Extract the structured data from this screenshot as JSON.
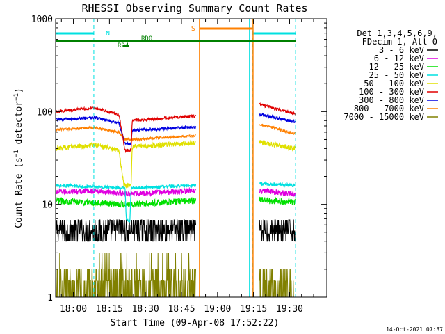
{
  "chart_data": {
    "type": "line",
    "title": "RHESSI Observing Summary Count Rates",
    "xlabel": "Start Time (09-Apr-08 17:52:22)",
    "ylabel": "Count Rate (s⁻¹ detector⁻¹)",
    "ylabel_main": "Count Rate (s",
    "ylabel_sup1": "−1",
    "ylabel_mid": " detector",
    "ylabel_sup2": "−1",
    "ylabel_end": ")",
    "y_scale": "log",
    "ylim": [
      1,
      1000
    ],
    "xlim_minutes": [
      -7.4,
      105.5
    ],
    "x_ticks": [
      {
        "label": "18:00",
        "min": 0
      },
      {
        "label": "18:15",
        "min": 15
      },
      {
        "label": "18:30",
        "min": 30
      },
      {
        "label": "18:45",
        "min": 45
      },
      {
        "label": "19:00",
        "min": 60
      },
      {
        "label": "19:15",
        "min": 75
      },
      {
        "label": "19:30",
        "min": 90
      }
    ],
    "y_ticks": [
      {
        "label": "1",
        "value": 1
      },
      {
        "label": "10",
        "value": 10
      },
      {
        "label": "100",
        "value": 100
      },
      {
        "label": "1000",
        "value": 1000
      }
    ],
    "legend_header": [
      "Det 1,3,4,5,6,9,",
      "FDecim 1, Att 0"
    ],
    "series": [
      {
        "name": "3 - 6 keV",
        "color": "#000000",
        "values": [
          {
            "x": -7.4,
            "y": 4.8
          },
          {
            "x": 51,
            "y": 4.8
          },
          {
            "x": 72,
            "y": 5.0
          },
          {
            "x": 92,
            "y": 5.0
          }
        ]
      },
      {
        "name": "6 - 12 keV",
        "color": "#e000e0",
        "values": [
          {
            "x": -7.4,
            "y": 13.5
          },
          {
            "x": 9,
            "y": 14.0
          },
          {
            "x": 22,
            "y": 13.0
          },
          {
            "x": 51,
            "y": 14.0
          },
          {
            "x": 72,
            "y": 14.5
          },
          {
            "x": 92,
            "y": 13.0
          }
        ]
      },
      {
        "name": "12 - 25 keV",
        "color": "#00e000",
        "values": [
          {
            "x": -7.4,
            "y": 11.0
          },
          {
            "x": 22,
            "y": 10.0
          },
          {
            "x": 51,
            "y": 11.0
          },
          {
            "x": 72,
            "y": 11.5
          },
          {
            "x": 92,
            "y": 10.5
          }
        ]
      },
      {
        "name": "25 - 50 keV",
        "color": "#00e0e0",
        "values": [
          {
            "x": -7.4,
            "y": 16.0
          },
          {
            "x": 21.5,
            "y": 15.0
          },
          {
            "x": 22,
            "y": 7.0
          },
          {
            "x": 23.5,
            "y": 6.5
          },
          {
            "x": 24,
            "y": 15.0
          },
          {
            "x": 51,
            "y": 16.0
          },
          {
            "x": 72,
            "y": 17.0
          },
          {
            "x": 92,
            "y": 16.0
          }
        ]
      },
      {
        "name": "50 - 100 keV",
        "color": "#e0e000",
        "values": [
          {
            "x": -7.4,
            "y": 40
          },
          {
            "x": 9,
            "y": 44
          },
          {
            "x": 19,
            "y": 38
          },
          {
            "x": 21,
            "y": 16
          },
          {
            "x": 24,
            "y": 16
          },
          {
            "x": 24.5,
            "y": 42
          },
          {
            "x": 51,
            "y": 46
          },
          {
            "x": 72,
            "y": 50
          },
          {
            "x": 92,
            "y": 40
          }
        ]
      },
      {
        "name": "100 - 300 keV",
        "color": "#e00000",
        "values": [
          {
            "x": -7.4,
            "y": 100
          },
          {
            "x": 9,
            "y": 110
          },
          {
            "x": 19,
            "y": 92
          },
          {
            "x": 21.5,
            "y": 38
          },
          {
            "x": 24,
            "y": 38
          },
          {
            "x": 24.5,
            "y": 80
          },
          {
            "x": 51,
            "y": 90
          },
          {
            "x": 72,
            "y": 130
          },
          {
            "x": 92,
            "y": 95
          }
        ]
      },
      {
        "name": "300 - 800 keV",
        "color": "#0000e0",
        "values": [
          {
            "x": -7.4,
            "y": 82
          },
          {
            "x": 9,
            "y": 86
          },
          {
            "x": 19,
            "y": 75
          },
          {
            "x": 21.5,
            "y": 45
          },
          {
            "x": 24,
            "y": 45
          },
          {
            "x": 24.5,
            "y": 63
          },
          {
            "x": 51,
            "y": 68
          },
          {
            "x": 72,
            "y": 100
          },
          {
            "x": 92,
            "y": 78
          }
        ]
      },
      {
        "name": "800 - 7000 keV",
        "color": "#ff8000",
        "values": [
          {
            "x": -7.4,
            "y": 64
          },
          {
            "x": 9,
            "y": 67
          },
          {
            "x": 19,
            "y": 60
          },
          {
            "x": 21.5,
            "y": 50
          },
          {
            "x": 24,
            "y": 50
          },
          {
            "x": 24.5,
            "y": 50
          },
          {
            "x": 51,
            "y": 55
          },
          {
            "x": 72,
            "y": 80
          },
          {
            "x": 92,
            "y": 58
          }
        ]
      },
      {
        "name": "7000 - 15000 keV",
        "color": "#808000",
        "values": [
          {
            "x": -7.4,
            "y": 1.5
          },
          {
            "x": 51,
            "y": 1.5
          },
          {
            "x": 72,
            "y": 1.5
          },
          {
            "x": 92,
            "y": 1.5
          }
        ]
      }
    ],
    "annotations": [
      {
        "type": "night",
        "label": "N",
        "color": "#00e0e0",
        "start": -7.4,
        "end": 8.5
      },
      {
        "type": "night",
        "label": "",
        "color": "#00e0e0",
        "start": 74.5,
        "end": 92.5
      },
      {
        "type": "saa",
        "label": "S",
        "color": "#ff8000",
        "start": 52.5,
        "end": 74.5
      },
      {
        "type": "decimation",
        "label": "RD0",
        "color": "#008000",
        "start": -7.4,
        "end": 92.5
      },
      {
        "type": "decimation",
        "label": "RD4",
        "color": "#008000",
        "start": 20.5,
        "end": 23.0
      }
    ]
  },
  "footer": {
    "timestamp": "14-Oct-2021 07:37"
  }
}
